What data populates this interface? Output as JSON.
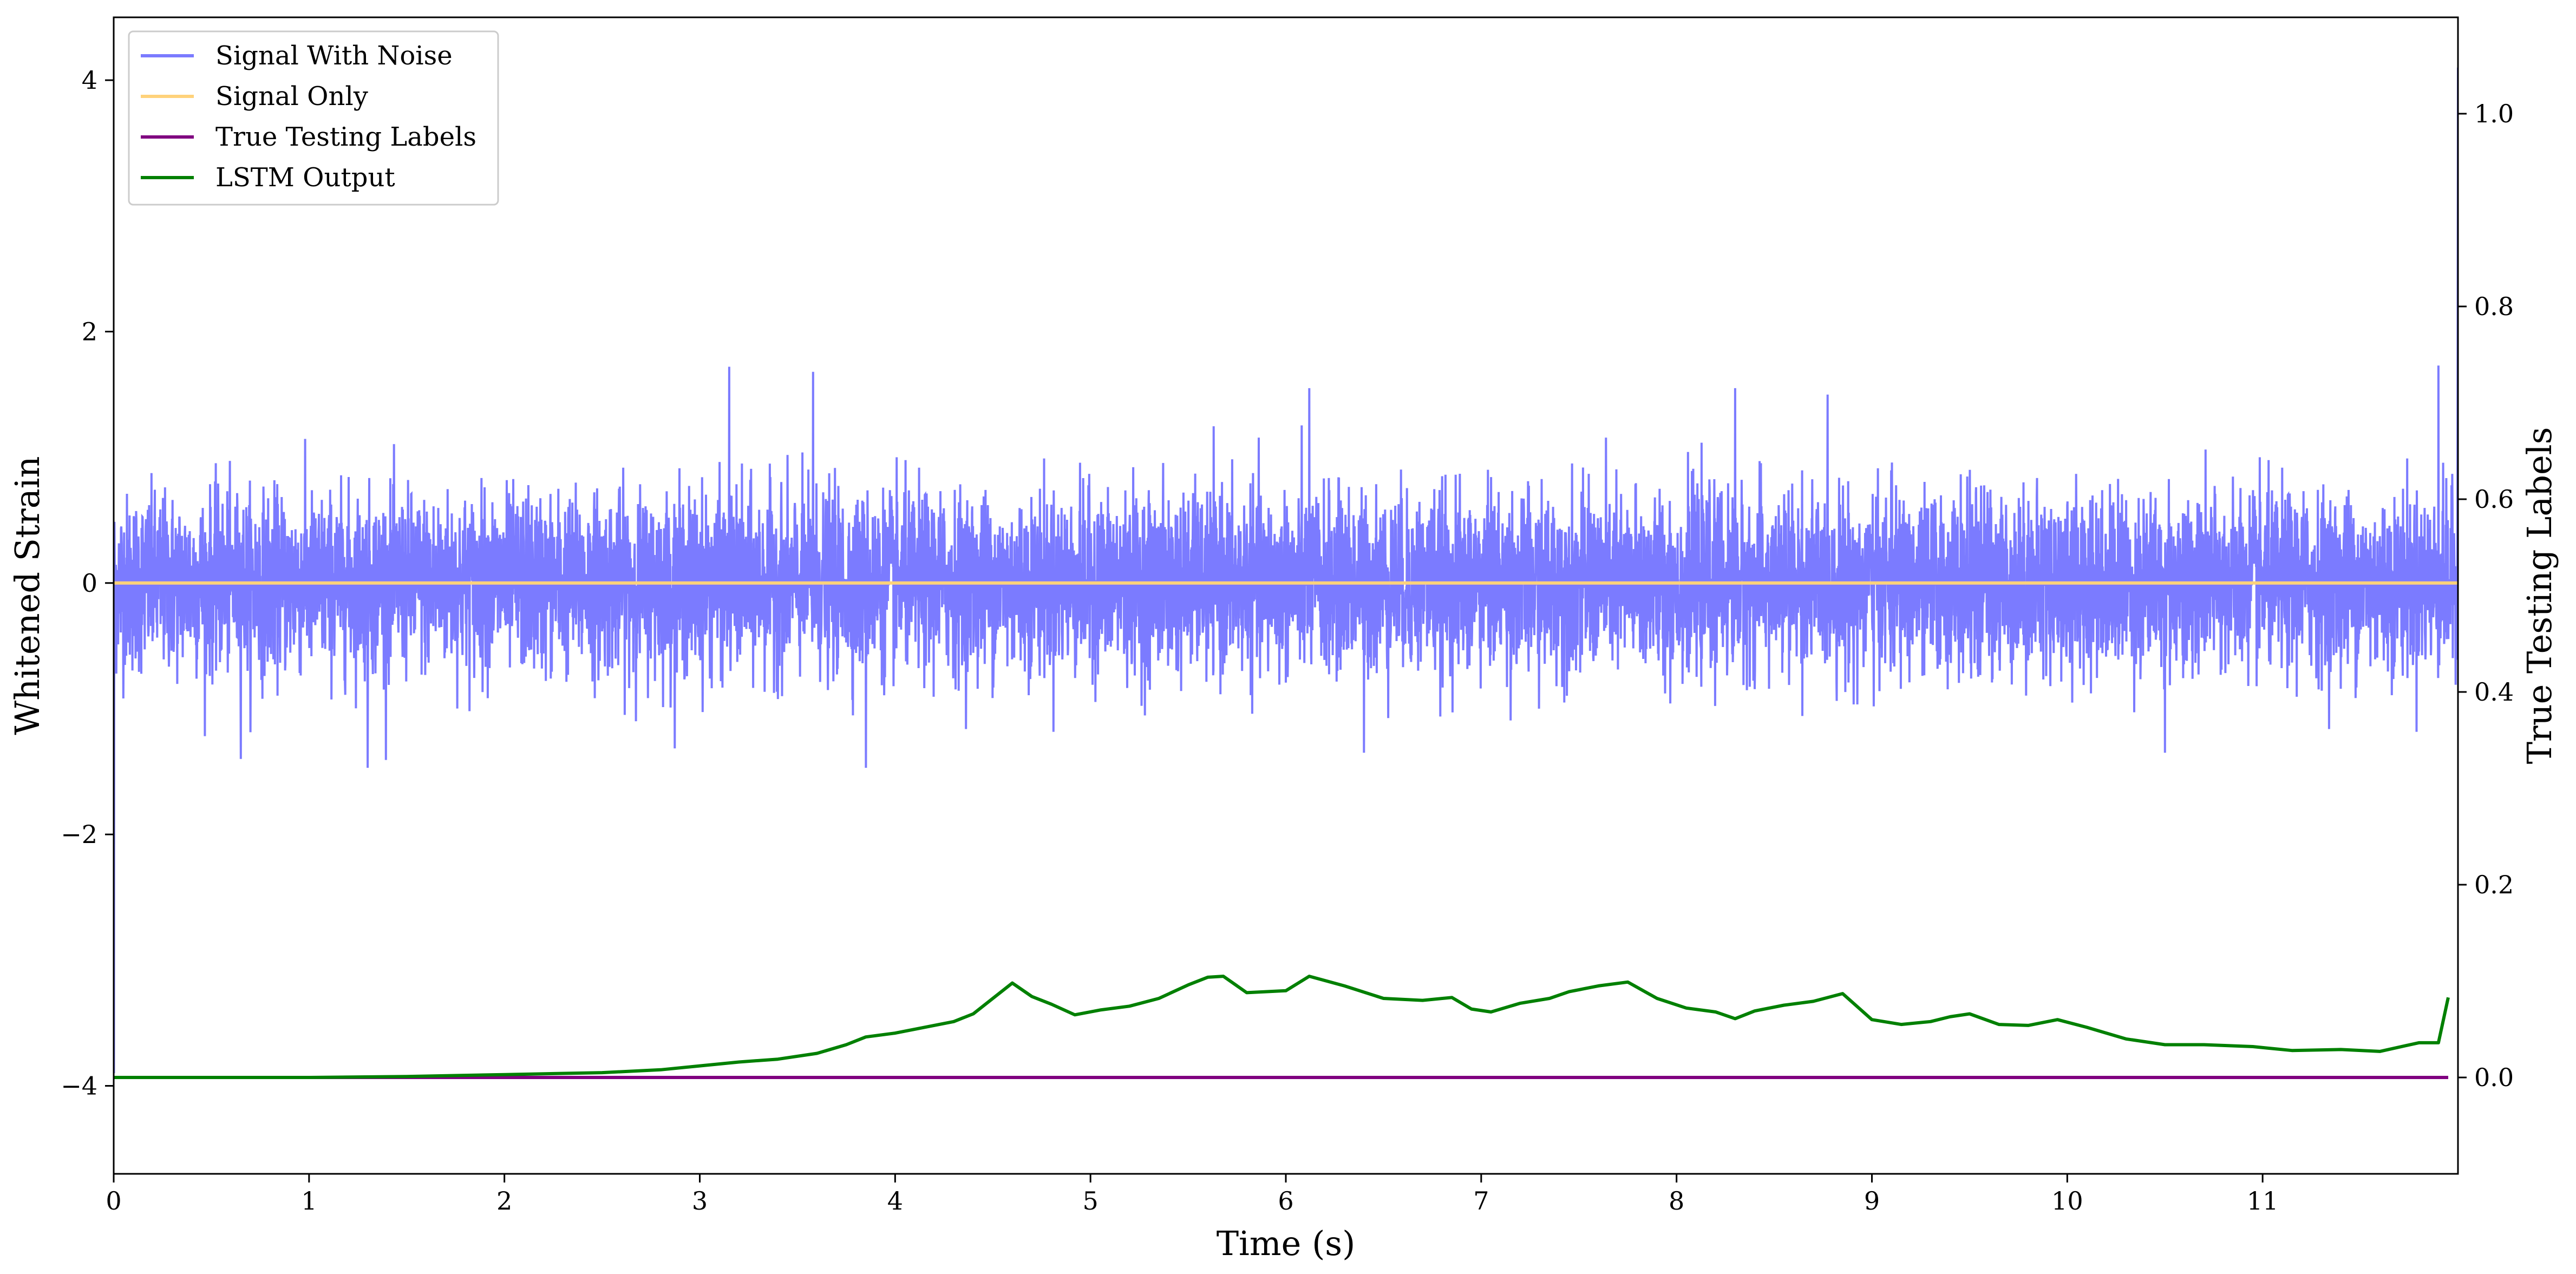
{
  "chart_data": {
    "type": "line",
    "xlabel": "Time (s)",
    "ylabel": "Whitened Strain",
    "y2label": "True Testing Labels",
    "xlim": [
      0,
      12
    ],
    "ylim": [
      -4.7,
      4.5
    ],
    "y2lim": [
      -0.1,
      1.1
    ],
    "x_ticks": [
      0,
      1,
      2,
      3,
      4,
      5,
      6,
      7,
      8,
      9,
      10,
      11
    ],
    "x_tick_labels": [
      "0",
      "1",
      "2",
      "3",
      "4",
      "5",
      "6",
      "7",
      "8",
      "9",
      "10",
      "11"
    ],
    "y_ticks": [
      -4,
      -2,
      0,
      2,
      4
    ],
    "y_tick_labels": [
      "−4",
      "−2",
      "0",
      "2",
      "4"
    ],
    "y2_ticks": [
      0.0,
      0.2,
      0.4,
      0.6,
      0.8,
      1.0
    ],
    "y2_tick_labels": [
      "0.0",
      "0.2",
      "0.4",
      "0.6",
      "0.8",
      "1.0"
    ],
    "grid": false,
    "legend_position": "top-left",
    "series": [
      {
        "name": "Signal With Noise",
        "color": "#7b7bff",
        "axis": "left",
        "x_range": [
          0,
          12
        ],
        "amplitude_std": 0.35,
        "spikes": [
          {
            "x": 3.15,
            "y": 1.72
          },
          {
            "x": 3.58,
            "y": 1.68
          },
          {
            "x": 6.12,
            "y": 1.55
          },
          {
            "x": 11.9,
            "y": 1.73
          },
          {
            "x": 8.3,
            "y": 1.55
          },
          {
            "x": 1.3,
            "y": -1.47
          },
          {
            "x": 3.85,
            "y": -1.47
          },
          {
            "x": 0.65,
            "y": -1.4
          },
          {
            "x": 6.4,
            "y": -1.35
          },
          {
            "x": 10.5,
            "y": -1.35
          }
        ]
      },
      {
        "name": "Signal Only",
        "color": "#ffd27a",
        "axis": "left",
        "x": [
          0,
          12
        ],
        "y": [
          0,
          0
        ]
      },
      {
        "name": "True Testing Labels",
        "color": "#800080",
        "axis": "right",
        "x": [
          0,
          11.95
        ],
        "y": [
          0,
          0
        ]
      },
      {
        "name": "LSTM Output",
        "color": "#008000",
        "axis": "right",
        "x": [
          0,
          0.5,
          1.0,
          1.5,
          2.0,
          2.5,
          2.8,
          3.0,
          3.2,
          3.4,
          3.6,
          3.75,
          3.85,
          4.0,
          4.15,
          4.3,
          4.4,
          4.5,
          4.6,
          4.7,
          4.8,
          4.92,
          5.05,
          5.2,
          5.35,
          5.5,
          5.6,
          5.68,
          5.8,
          6.0,
          6.12,
          6.3,
          6.5,
          6.7,
          6.85,
          6.95,
          7.05,
          7.2,
          7.35,
          7.45,
          7.6,
          7.75,
          7.9,
          8.05,
          8.2,
          8.3,
          8.4,
          8.55,
          8.7,
          8.85,
          9.0,
          9.15,
          9.3,
          9.4,
          9.5,
          9.65,
          9.8,
          9.95,
          10.1,
          10.3,
          10.5,
          10.7,
          10.95,
          11.15,
          11.4,
          11.6,
          11.8,
          11.9,
          11.95
        ],
        "y": [
          0.0,
          0.0,
          0.0,
          0.001,
          0.003,
          0.005,
          0.008,
          0.012,
          0.016,
          0.019,
          0.025,
          0.034,
          0.042,
          0.046,
          0.052,
          0.058,
          0.066,
          0.082,
          0.098,
          0.084,
          0.076,
          0.065,
          0.07,
          0.074,
          0.082,
          0.096,
          0.104,
          0.105,
          0.088,
          0.09,
          0.105,
          0.095,
          0.082,
          0.08,
          0.083,
          0.071,
          0.068,
          0.077,
          0.082,
          0.089,
          0.095,
          0.099,
          0.082,
          0.072,
          0.068,
          0.061,
          0.069,
          0.075,
          0.079,
          0.087,
          0.06,
          0.055,
          0.058,
          0.063,
          0.066,
          0.055,
          0.054,
          0.06,
          0.052,
          0.04,
          0.034,
          0.034,
          0.032,
          0.028,
          0.029,
          0.027,
          0.036,
          0.036,
          0.083
        ]
      }
    ]
  }
}
